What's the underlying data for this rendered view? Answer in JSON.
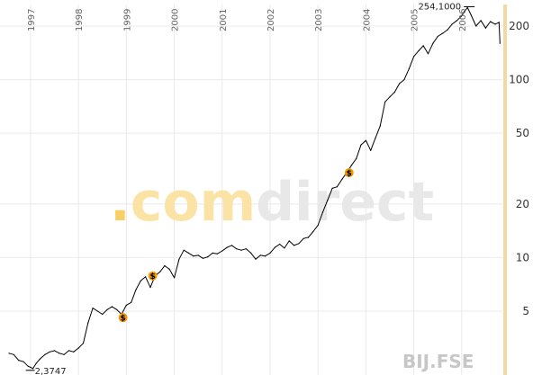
{
  "colors": {
    "line": "#000000",
    "grid": "#e9e9e9",
    "axis_bar": "#f3d9a0",
    "dividend_marker": "#f39a00",
    "watermark_dot": "#f7cf63",
    "watermark_com": "#fbe3a5",
    "watermark_direct": "#e8e8e8",
    "ticker": "#c7c7c7"
  },
  "watermark": {
    "dot": ".",
    "com": "com",
    "direct": "direct"
  },
  "ticker": "BIJ.FSE",
  "chart_data": {
    "type": "line",
    "y_scale": "log",
    "ylim": [
      2.2,
      260
    ],
    "y_ticks": [
      {
        "label": "200",
        "value": 200
      },
      {
        "label": "100",
        "value": 100
      },
      {
        "label": "50",
        "value": 50
      },
      {
        "label": "20",
        "value": 20
      },
      {
        "label": "10",
        "value": 10
      },
      {
        "label": "5",
        "value": 5
      }
    ],
    "x_ticks": [
      {
        "label": "1997",
        "value": 1997.0
      },
      {
        "label": "1998",
        "value": 1998.0
      },
      {
        "label": "1999",
        "value": 1999.0
      },
      {
        "label": "2000",
        "value": 2000.0
      },
      {
        "label": "2001",
        "value": 2001.0
      },
      {
        "label": "2002",
        "value": 2002.0
      },
      {
        "label": "2003",
        "value": 2003.0
      },
      {
        "label": "2004",
        "value": 2004.0
      },
      {
        "label": "2005",
        "value": 2005.0
      },
      {
        "label": "2006",
        "value": 2006.0
      }
    ],
    "xlim": [
      1996.55,
      2006.85
    ],
    "grid": true,
    "series": [
      {
        "values": [
          [
            1996.55,
            2.9
          ],
          [
            1996.65,
            2.85
          ],
          [
            1996.75,
            2.65
          ],
          [
            1996.85,
            2.6
          ],
          [
            1996.95,
            2.45
          ],
          [
            1997.0,
            2.42
          ],
          [
            1997.05,
            2.38
          ],
          [
            1997.12,
            2.55
          ],
          [
            1997.2,
            2.7
          ],
          [
            1997.3,
            2.85
          ],
          [
            1997.4,
            2.95
          ],
          [
            1997.5,
            3.0
          ],
          [
            1997.6,
            2.9
          ],
          [
            1997.7,
            2.85
          ],
          [
            1997.8,
            3.0
          ],
          [
            1997.9,
            2.95
          ],
          [
            1998.0,
            3.1
          ],
          [
            1998.1,
            3.3
          ],
          [
            1998.2,
            4.3
          ],
          [
            1998.3,
            5.2
          ],
          [
            1998.4,
            5.0
          ],
          [
            1998.5,
            4.8
          ],
          [
            1998.6,
            5.1
          ],
          [
            1998.7,
            5.3
          ],
          [
            1998.8,
            5.1
          ],
          [
            1998.9,
            4.8
          ],
          [
            1999.0,
            5.4
          ],
          [
            1999.1,
            5.6
          ],
          [
            1999.2,
            6.6
          ],
          [
            1999.3,
            7.4
          ],
          [
            1999.4,
            7.8
          ],
          [
            1999.5,
            6.8
          ],
          [
            1999.6,
            7.9
          ],
          [
            1999.7,
            8.3
          ],
          [
            1999.8,
            9.0
          ],
          [
            1999.9,
            8.6
          ],
          [
            2000.0,
            7.7
          ],
          [
            2000.1,
            9.8
          ],
          [
            2000.2,
            11.0
          ],
          [
            2000.3,
            10.6
          ],
          [
            2000.4,
            10.2
          ],
          [
            2000.5,
            10.3
          ],
          [
            2000.6,
            9.9
          ],
          [
            2000.7,
            10.1
          ],
          [
            2000.8,
            10.6
          ],
          [
            2000.9,
            10.5
          ],
          [
            2001.0,
            10.9
          ],
          [
            2001.1,
            11.4
          ],
          [
            2001.2,
            11.7
          ],
          [
            2001.3,
            11.2
          ],
          [
            2001.4,
            11.0
          ],
          [
            2001.5,
            11.2
          ],
          [
            2001.6,
            10.6
          ],
          [
            2001.7,
            9.8
          ],
          [
            2001.8,
            10.3
          ],
          [
            2001.9,
            10.2
          ],
          [
            2002.0,
            10.6
          ],
          [
            2002.1,
            11.4
          ],
          [
            2002.2,
            11.9
          ],
          [
            2002.3,
            11.3
          ],
          [
            2002.4,
            12.4
          ],
          [
            2002.5,
            11.7
          ],
          [
            2002.6,
            12.0
          ],
          [
            2002.7,
            12.8
          ],
          [
            2002.8,
            13.0
          ],
          [
            2002.9,
            14.0
          ],
          [
            2003.0,
            15.2
          ],
          [
            2003.1,
            18.0
          ],
          [
            2003.2,
            21.0
          ],
          [
            2003.3,
            24.5
          ],
          [
            2003.4,
            25.0
          ],
          [
            2003.5,
            27.5
          ],
          [
            2003.6,
            30.0
          ],
          [
            2003.7,
            33.0
          ],
          [
            2003.8,
            36.0
          ],
          [
            2003.9,
            43.0
          ],
          [
            2004.0,
            45.5
          ],
          [
            2004.1,
            40.0
          ],
          [
            2004.2,
            47.0
          ],
          [
            2004.3,
            55.0
          ],
          [
            2004.4,
            75.0
          ],
          [
            2004.5,
            80.0
          ],
          [
            2004.6,
            85.0
          ],
          [
            2004.7,
            95.0
          ],
          [
            2004.8,
            100.0
          ],
          [
            2004.9,
            115.0
          ],
          [
            2005.0,
            135.0
          ],
          [
            2005.1,
            145.0
          ],
          [
            2005.2,
            155.0
          ],
          [
            2005.3,
            140.0
          ],
          [
            2005.4,
            160.0
          ],
          [
            2005.5,
            175.0
          ],
          [
            2005.6,
            182.0
          ],
          [
            2005.7,
            190.0
          ],
          [
            2005.8,
            205.0
          ],
          [
            2005.9,
            215.0
          ],
          [
            2006.0,
            228.0
          ],
          [
            2006.05,
            240.0
          ],
          [
            2006.12,
            254.1
          ],
          [
            2006.2,
            230.0
          ],
          [
            2006.3,
            200.0
          ],
          [
            2006.4,
            215.0
          ],
          [
            2006.5,
            195.0
          ],
          [
            2006.6,
            212.0
          ],
          [
            2006.7,
            205.0
          ],
          [
            2006.78,
            210.0
          ],
          [
            2006.8,
            160.0
          ]
        ]
      }
    ],
    "annotations": [
      {
        "text": "254,1000",
        "x": 2006.12,
        "y": 254.1,
        "type": "max"
      },
      {
        "text": "2,3747",
        "x": 1997.05,
        "y": 2.38,
        "type": "min"
      }
    ],
    "dividend_markers": [
      {
        "symbol": "$",
        "x": 1998.93,
        "y": 4.6
      },
      {
        "symbol": "$",
        "x": 1999.55,
        "y": 7.9
      },
      {
        "symbol": "$",
        "x": 2003.65,
        "y": 30.0
      }
    ]
  }
}
